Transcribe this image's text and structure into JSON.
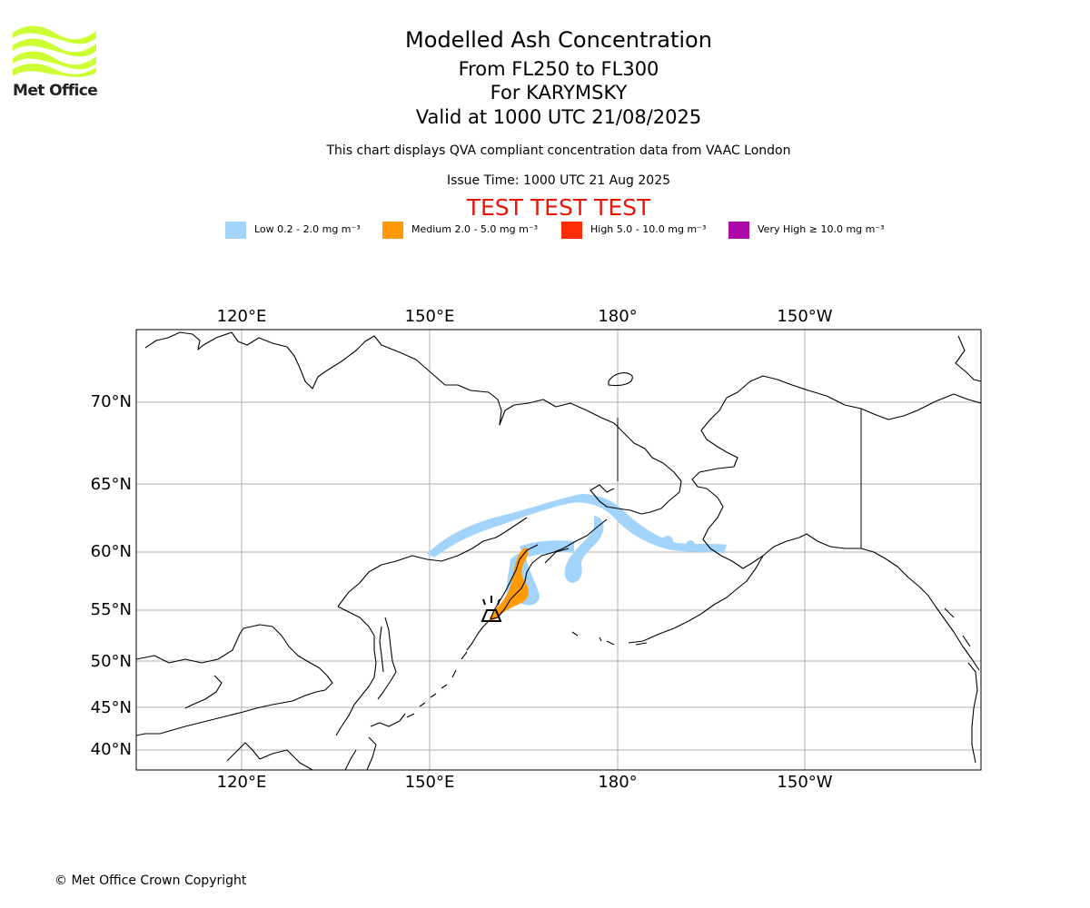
{
  "logo": {
    "text": "Met Office",
    "brand_color": "#ccff33"
  },
  "header": {
    "title": "Modelled Ash Concentration",
    "levels": "From FL250 to FL300",
    "volcano": "For KARYMSKY",
    "valid": "Valid at 1000 UTC 21/08/2025",
    "description": "This chart displays QVA compliant concentration data from VAAC London",
    "issue_time": "Issue Time: 1000 UTC 21 Aug 2025",
    "test_banner": "TEST TEST TEST"
  },
  "legend": [
    {
      "label": "Low 0.2 - 2.0 mg m⁻³",
      "color": "#a2d4fb"
    },
    {
      "label": "Medium 2.0 - 5.0 mg m⁻³",
      "color": "#ff9a06"
    },
    {
      "label": "High 5.0 - 10.0 mg m⁻³",
      "color": "#ff2d05"
    },
    {
      "label": "Very High  ≥  10.0 mg m⁻³",
      "color": "#ad0aac"
    }
  ],
  "map": {
    "lon_labels": [
      "120°E",
      "150°E",
      "180°",
      "150°W"
    ],
    "lat_labels": [
      "70°N",
      "65°N",
      "60°N",
      "55°N",
      "50°N",
      "45°N",
      "40°N"
    ],
    "gridline_color": "#b0b0b0",
    "volcano_symbol": "volcano-icon"
  },
  "footer": {
    "copyright": "© Met Office Crown Copyright"
  }
}
